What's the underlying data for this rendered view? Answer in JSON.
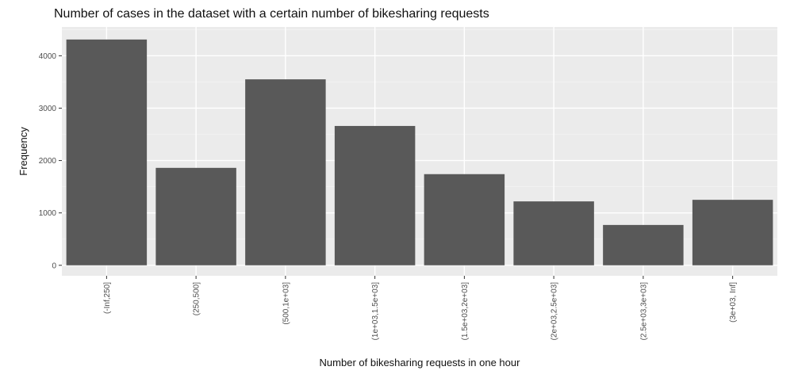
{
  "colors": {
    "panel": "#ebebeb",
    "grid_major": "#ffffff",
    "grid_minor": "#f3f3f3",
    "bar": "#595959",
    "axis_text": "#4d4d4d"
  },
  "chart_data": {
    "type": "bar",
    "title": "Number of cases in the dataset with a certain number of bikesharing requests",
    "xlabel": "Number of bikesharing requests in one hour",
    "ylabel": "Frequency",
    "categories": [
      "(-Inf,250]",
      "(250,500]",
      "(500,1e+03]",
      "(1e+03,1.5e+03]",
      "(1.5e+03,2e+03]",
      "(2e+03,2.5e+03]",
      "(2.5e+03,3e+03]",
      "(3e+03, Inf]"
    ],
    "values": [
      4310,
      1860,
      3550,
      2660,
      1740,
      1220,
      770,
      1250
    ],
    "yticks": [
      0,
      1000,
      2000,
      3000,
      4000
    ],
    "ytick_labels": [
      "0",
      "1000",
      "2000",
      "3000",
      "4000"
    ],
    "ylim": [
      -200,
      4550
    ],
    "grid": true,
    "legend": "none"
  }
}
